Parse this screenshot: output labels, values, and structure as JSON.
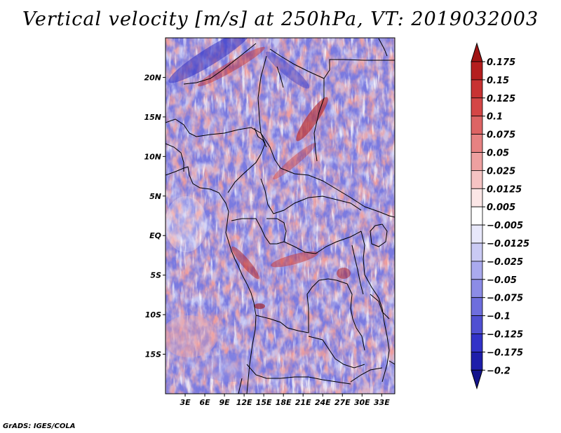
{
  "chart_data": {
    "type": "heatmap",
    "title": "Vertical velocity [m/s] at 250hPa, VT: 2019032003",
    "variable": "Vertical velocity",
    "units": "m/s",
    "level": "250hPa",
    "valid_time": "2019032003",
    "x_axis": {
      "label": "",
      "range": [
        0,
        35
      ],
      "ticks": [
        3,
        6,
        9,
        12,
        15,
        18,
        21,
        24,
        27,
        30,
        33
      ],
      "tick_labels": [
        "3E",
        "6E",
        "9E",
        "12E",
        "15E",
        "18E",
        "21E",
        "24E",
        "27E",
        "30E",
        "33E"
      ]
    },
    "y_axis": {
      "label": "",
      "range": [
        -20,
        25
      ],
      "ticks": [
        20,
        15,
        10,
        5,
        0,
        -5,
        -10,
        -15
      ],
      "tick_labels": [
        "20N",
        "15N",
        "10N",
        "5N",
        "EQ",
        "5S",
        "10S",
        "15S"
      ]
    },
    "colorbar": {
      "levels": [
        "0.175",
        "0.15",
        "0.125",
        "0.1",
        "0.075",
        "0.05",
        "0.025",
        "0.0125",
        "0.005",
        "−0.005",
        "−0.0125",
        "−0.025",
        "−0.05",
        "−0.075",
        "−0.1",
        "−0.125",
        "−0.175",
        "−0.2"
      ],
      "colors": [
        "#a01414",
        "#b41e1e",
        "#c83232",
        "#d44646",
        "#dd6464",
        "#e68282",
        "#eea0a0",
        "#f5c3c3",
        "#fbe6e6",
        "#ffffff",
        "#e8e8fb",
        "#cacaf4",
        "#aaaaee",
        "#8c8ce6",
        "#6e6edd",
        "#5050d2",
        "#3232c8",
        "#1e1eaa",
        "#14148c"
      ],
      "placement": "right"
    }
  },
  "footer": {
    "credit": "GrADS: IGES/COLA"
  }
}
